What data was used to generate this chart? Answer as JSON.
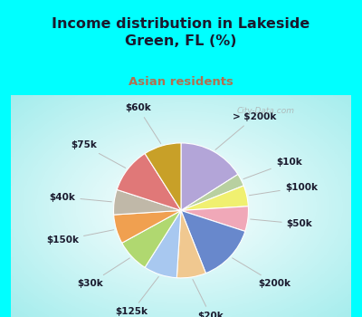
{
  "title": "Income distribution in Lakeside\nGreen, FL (%)",
  "subtitle": "Asian residents",
  "title_color": "#1a1a2e",
  "subtitle_color": "#b07050",
  "background_outer": "#00ffff",
  "watermark": "City-Data.com",
  "labels": [
    "> $200k",
    "$10k",
    "$100k",
    "$50k",
    "$200k",
    "$20k",
    "$125k",
    "$30k",
    "$150k",
    "$40k",
    "$75k",
    "$60k"
  ],
  "values": [
    16,
    3,
    5,
    6,
    14,
    7,
    8,
    8,
    7,
    6,
    11,
    9
  ],
  "colors": [
    "#b3a5d8",
    "#b8d0a0",
    "#f0f070",
    "#f0a8b8",
    "#6888cc",
    "#f0c890",
    "#a8c8f0",
    "#b0d870",
    "#f0a050",
    "#c0b8a8",
    "#e07878",
    "#c8a028"
  ],
  "startangle": 90,
  "figsize": [
    4.0,
    3.5
  ],
  "dpi": 100,
  "label_fontsize": 7.5,
  "title_fontsize": 11.5
}
